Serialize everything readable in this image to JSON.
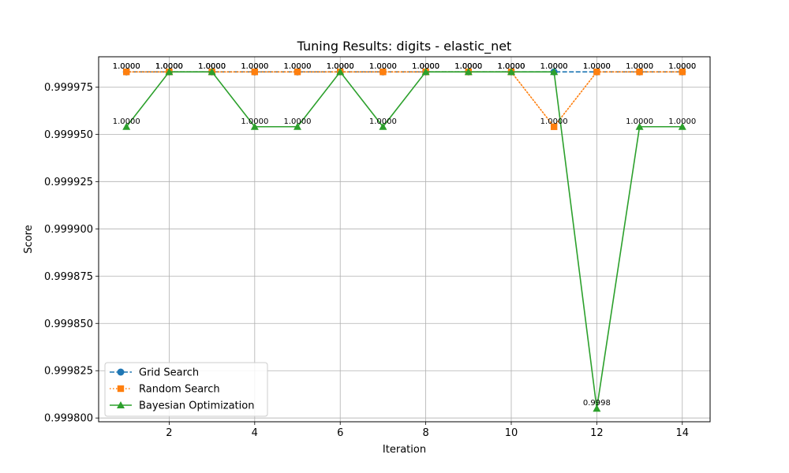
{
  "chart_data": {
    "type": "line",
    "title": "Tuning Results: digits - elastic_net",
    "xlabel": "Iteration",
    "ylabel": "Score",
    "x": [
      1,
      2,
      3,
      4,
      5,
      6,
      7,
      8,
      9,
      10,
      11,
      12,
      13,
      14
    ],
    "xlim": [
      0.35,
      14.65
    ],
    "ylim": [
      0.999798,
      0.999991
    ],
    "xticks": [
      2,
      4,
      6,
      8,
      10,
      12,
      14
    ],
    "yticks": [
      0.9998,
      0.999825,
      0.99985,
      0.999875,
      0.9999,
      0.999925,
      0.99995,
      0.999975
    ],
    "ytick_labels": [
      "0.999800",
      "0.999825",
      "0.999850",
      "0.999875",
      "0.999900",
      "0.999925",
      "0.999950",
      "0.999975"
    ],
    "grid": true,
    "legend_position": "lower-left",
    "series": [
      {
        "name": "Grid Search",
        "color": "#1f77b4",
        "marker": "circle",
        "linestyle": "dashed",
        "values": [
          0.999983,
          0.999983,
          0.999983,
          0.999983,
          0.999983,
          0.999983,
          0.999983,
          0.999983,
          0.999983,
          0.999983,
          0.999983,
          0.999983,
          0.999983,
          0.999983
        ],
        "labels": [
          "1.0000",
          "1.0000",
          "1.0000",
          "1.0000",
          "1.0000",
          "1.0000",
          "1.0000",
          "1.0000",
          "1.0000",
          "1.0000",
          "1.0000",
          "1.0000",
          "1.0000",
          "1.0000"
        ]
      },
      {
        "name": "Random Search",
        "color": "#ff7f0e",
        "marker": "square",
        "linestyle": "dotted",
        "values": [
          0.999983,
          0.999983,
          0.999983,
          0.999983,
          0.999983,
          0.999983,
          0.999983,
          0.999983,
          0.999983,
          0.999983,
          0.999954,
          0.999983,
          0.999983,
          0.999983
        ],
        "labels": [
          "1.0000",
          "1.0000",
          "1.0000",
          "1.0000",
          "1.0000",
          "1.0000",
          "1.0000",
          "1.0000",
          "1.0000",
          "1.0000",
          "1.0000",
          "1.0000",
          "1.0000",
          "1.0000"
        ]
      },
      {
        "name": "Bayesian Optimization",
        "color": "#2ca02c",
        "marker": "triangle",
        "linestyle": "solid",
        "values": [
          0.999954,
          0.999983,
          0.999983,
          0.999954,
          0.999954,
          0.999983,
          0.999954,
          0.999983,
          0.999983,
          0.999983,
          0.999983,
          0.999805,
          0.999954,
          0.999954
        ],
        "labels": [
          "1.0000",
          "1.0000",
          "1.0000",
          "1.0000",
          "1.0000",
          "1.0000",
          "1.0000",
          "1.0000",
          "1.0000",
          "1.0000",
          "1.0000",
          "0.9998",
          "1.0000",
          "1.0000"
        ]
      }
    ]
  }
}
